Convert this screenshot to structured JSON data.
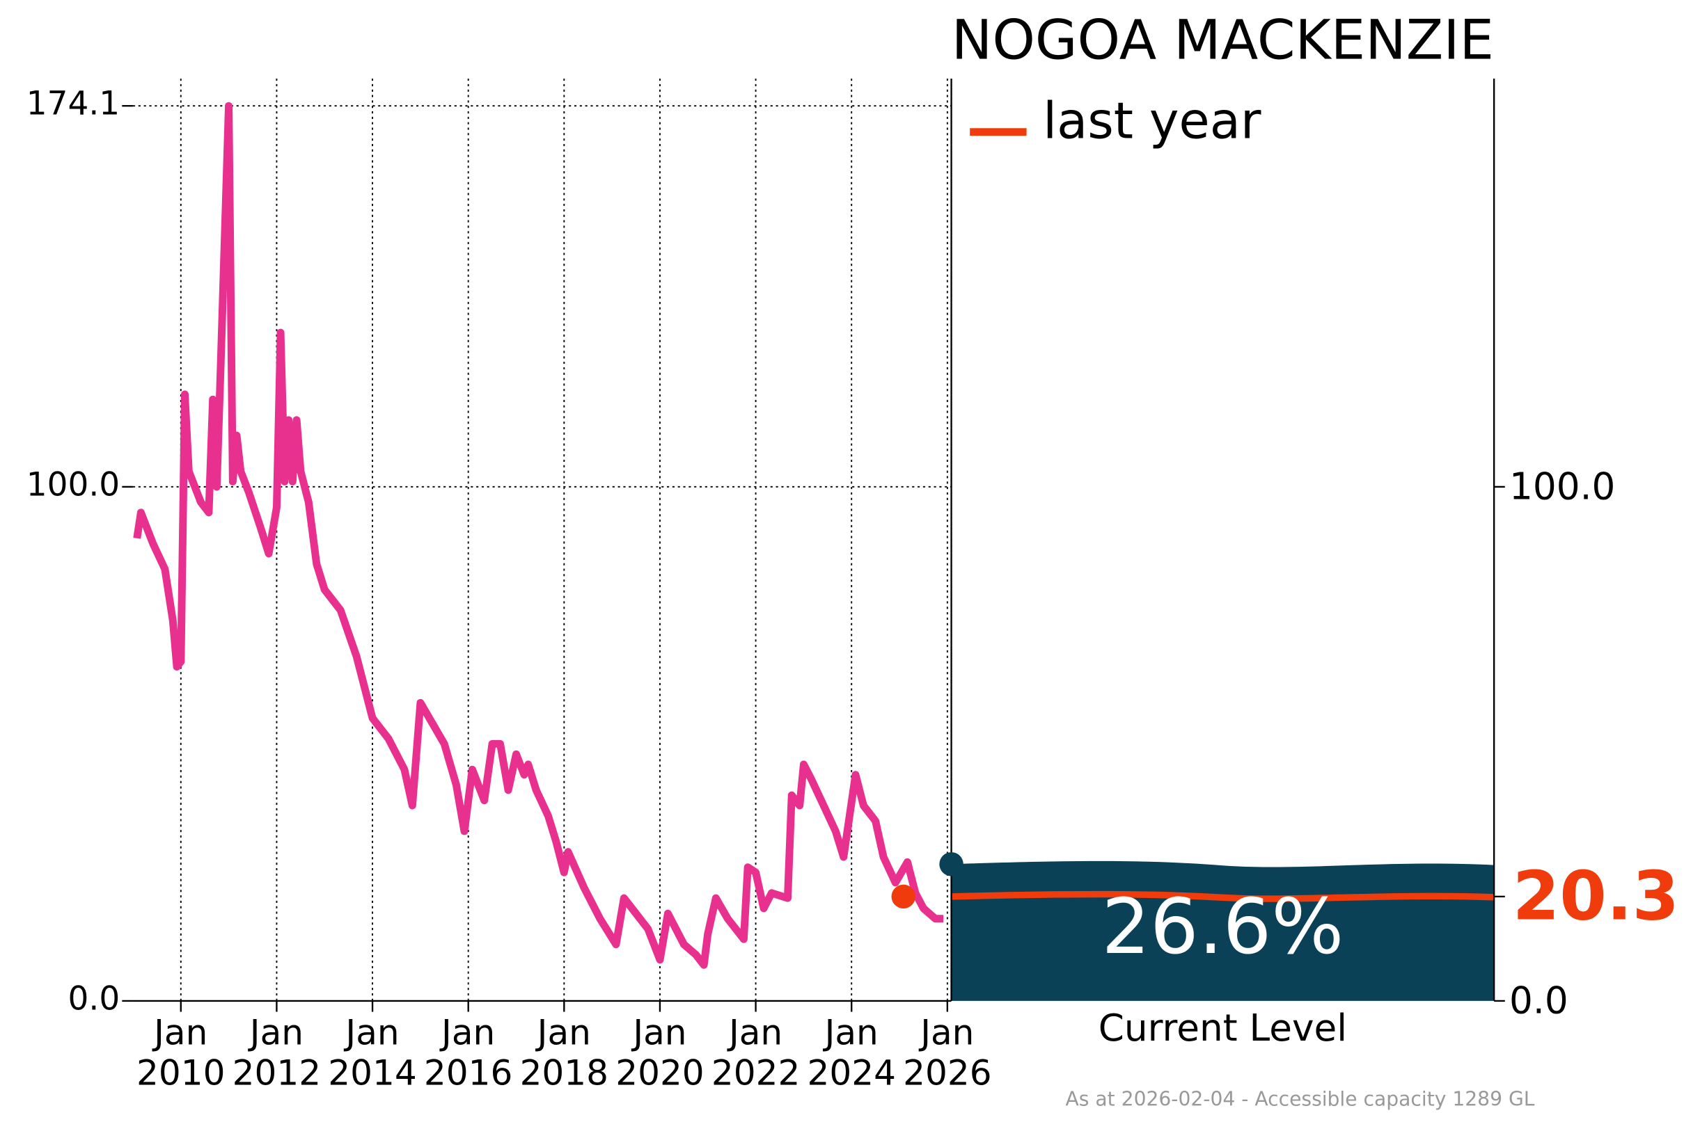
{
  "chart_data": [
    {
      "type": "line",
      "title": "NOGOA MACKENZIE",
      "color": "#e8318f",
      "x": [
        "2009-02",
        "2009-03",
        "2009-06",
        "2009-09",
        "2009-11",
        "2009-12",
        "2010-01",
        "2010-02",
        "2010-03",
        "2010-06",
        "2010-08",
        "2010-09",
        "2010-10",
        "2010-11",
        "2011-01",
        "2011-02",
        "2011-03",
        "2011-04",
        "2011-06",
        "2011-09",
        "2011-11",
        "2012-01",
        "2012-02",
        "2012-03",
        "2012-04",
        "2012-05",
        "2012-06",
        "2012-07",
        "2012-09",
        "2012-11",
        "2013-01",
        "2013-05",
        "2013-09",
        "2013-11",
        "2014-01",
        "2014-05",
        "2014-09",
        "2014-11",
        "2015-01",
        "2015-04",
        "2015-07",
        "2015-10",
        "2015-12",
        "2016-02",
        "2016-05",
        "2016-07",
        "2016-09",
        "2016-11",
        "2017-01",
        "2017-03",
        "2017-04",
        "2017-06",
        "2017-09",
        "2017-11",
        "2018-01",
        "2018-02",
        "2018-06",
        "2018-08",
        "2018-10",
        "2019-02",
        "2019-04",
        "2019-07",
        "2019-10",
        "2020-01",
        "2020-03",
        "2020-07",
        "2020-10",
        "2020-12",
        "2021-01",
        "2021-03",
        "2021-06",
        "2021-10",
        "2021-11",
        "2022-01",
        "2022-03",
        "2022-05",
        "2022-09",
        "2022-10",
        "2022-12",
        "2023-01",
        "2023-03",
        "2023-06",
        "2023-09",
        "2023-11",
        "2024-02",
        "2024-04",
        "2024-07",
        "2024-09",
        "2024-12",
        "2025-03",
        "2025-05",
        "2025-07",
        "2025-10",
        "2025-12"
      ],
      "values": [
        90,
        95,
        89,
        84,
        74,
        65,
        66,
        118,
        103,
        97,
        95,
        117,
        100,
        124,
        174.1,
        101,
        110,
        103,
        99,
        92,
        87,
        96,
        130,
        101,
        113,
        101,
        113,
        103,
        97,
        85,
        80,
        76,
        67,
        61,
        55,
        51,
        45,
        38,
        58,
        54,
        50,
        42,
        33,
        45,
        39,
        50,
        50,
        41,
        48,
        44,
        46,
        41,
        36,
        31,
        25,
        29,
        22,
        19,
        16,
        11,
        20,
        17,
        14,
        8,
        17,
        11,
        9,
        7,
        13,
        20,
        16,
        12,
        26,
        25,
        18,
        21,
        20,
        40,
        38,
        46,
        43,
        38,
        33,
        28,
        44,
        38,
        35,
        28,
        23,
        27,
        21,
        18,
        16,
        16
      ],
      "xlim": [
        "2009-01",
        "2026-02"
      ],
      "xticks": [
        {
          "value": "2010-01",
          "label": "Jan 2010"
        },
        {
          "value": "2012-01",
          "label": "Jan 2012"
        },
        {
          "value": "2014-01",
          "label": "Jan 2014"
        },
        {
          "value": "2016-01",
          "label": "Jan 2016"
        },
        {
          "value": "2018-01",
          "label": "Jan 2018"
        },
        {
          "value": "2020-01",
          "label": "Jan 2020"
        },
        {
          "value": "2022-01",
          "label": "Jan 2022"
        },
        {
          "value": "2024-01",
          "label": "Jan 2024"
        },
        {
          "value": "2026-01",
          "label": "Jan 2026"
        }
      ],
      "ylim": [
        0,
        179.4
      ],
      "yticks": [
        {
          "value": 0,
          "label": "0.0"
        },
        {
          "value": 100,
          "label": "100.0"
        },
        174.1
      ],
      "grid": true
    },
    {
      "type": "level",
      "xlabel": "Current Level",
      "ylim": [
        0,
        179.4
      ],
      "yticks": [
        {
          "value": 0,
          "label": "0.0"
        },
        {
          "value": 100,
          "label": "100.0"
        }
      ],
      "current": {
        "x": "2026-02",
        "value": 26.6,
        "value_label": "26.6%",
        "color": "#0b4157"
      },
      "last_year": {
        "name": "last year",
        "x": "2025-02",
        "value": 20.3,
        "color": "#f03c0c"
      },
      "legend": "upper left",
      "note": "As at 2026-02-04 - Accessible capacity 1289 GL"
    }
  ]
}
